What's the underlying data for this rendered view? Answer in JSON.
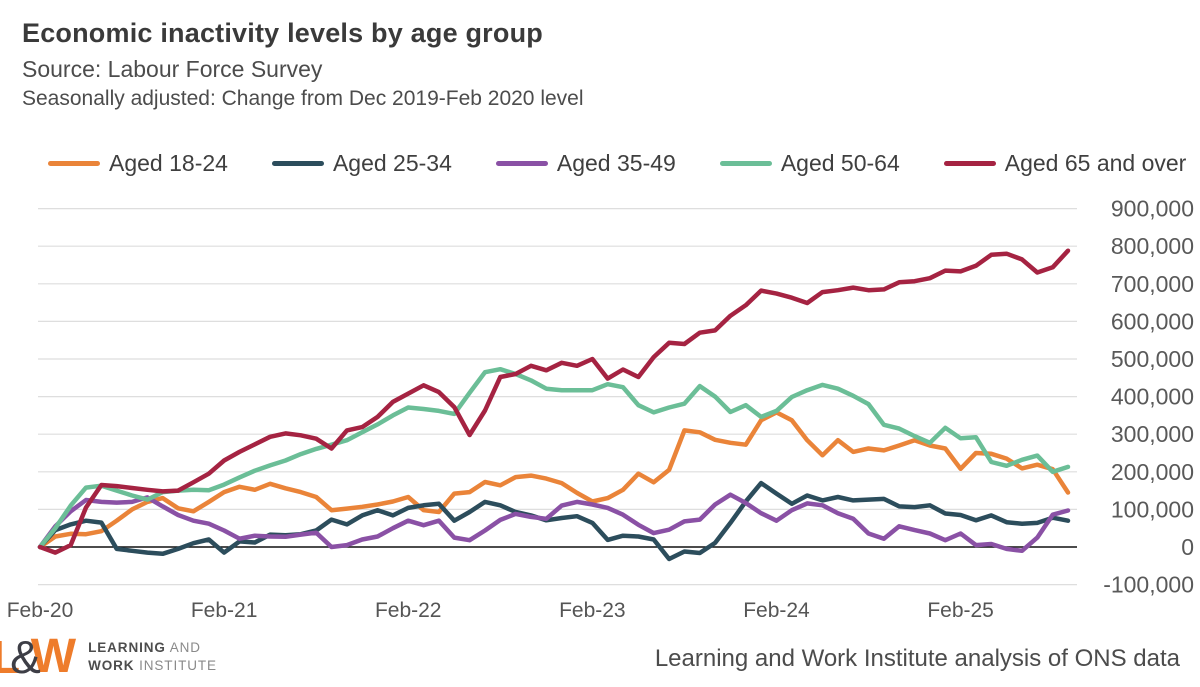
{
  "header": {
    "title": "Economic inactivity levels by age group",
    "source": "Source: Labour Force Survey",
    "subtitle": "Seasonally adjusted: Change from Dec 2019-Feb 2020 level"
  },
  "footer": {
    "logo": {
      "l": "L",
      "amp": "&",
      "w": "W",
      "line1_bold": "LEARNING",
      "line1_rest": " AND",
      "line2_bold": "WORK",
      "line2_rest": " INSTITUTE"
    },
    "attribution": "Learning and Work Institute analysis of ONS data"
  },
  "chart_data": {
    "type": "line",
    "title": "Economic inactivity levels by age group",
    "xlabel": "",
    "ylabel": "",
    "ylim": [
      -100000,
      900000
    ],
    "grid": true,
    "legend_position": "top",
    "colors": {
      "grid": "#dedede",
      "zero_axis": "#111111",
      "axis_text": "#595959"
    },
    "y_ticks": [
      {
        "label": "900,000",
        "value": 900000
      },
      {
        "label": "800,000",
        "value": 800000
      },
      {
        "label": "700,000",
        "value": 700000
      },
      {
        "label": "600,000",
        "value": 600000
      },
      {
        "label": "500,000",
        "value": 500000
      },
      {
        "label": "400,000",
        "value": 400000
      },
      {
        "label": "300,000",
        "value": 300000
      },
      {
        "label": "200,000",
        "value": 200000
      },
      {
        "label": "100,000",
        "value": 100000
      },
      {
        "label": "0",
        "value": 0
      },
      {
        "label": "-100,000",
        "value": -100000
      }
    ],
    "x_ticks": [
      "Feb-20",
      "Feb-21",
      "Feb-22",
      "Feb-23",
      "Feb-24",
      "Feb-25"
    ],
    "months": [
      "Feb-20",
      "Mar-20",
      "Apr-20",
      "May-20",
      "Jun-20",
      "Jul-20",
      "Aug-20",
      "Sep-20",
      "Oct-20",
      "Nov-20",
      "Dec-20",
      "Jan-21",
      "Feb-21",
      "Mar-21",
      "Apr-21",
      "May-21",
      "Jun-21",
      "Jul-21",
      "Aug-21",
      "Sep-21",
      "Oct-21",
      "Nov-21",
      "Dec-21",
      "Jan-22",
      "Feb-22",
      "Mar-22",
      "Apr-22",
      "May-22",
      "Jun-22",
      "Jul-22",
      "Aug-22",
      "Sep-22",
      "Oct-22",
      "Nov-22",
      "Dec-22",
      "Jan-23",
      "Feb-23",
      "Mar-23",
      "Apr-23",
      "May-23",
      "Jun-23",
      "Jul-23",
      "Aug-23",
      "Sep-23",
      "Oct-23",
      "Nov-23",
      "Dec-23",
      "Jan-24",
      "Feb-24",
      "Mar-24",
      "Apr-24",
      "May-24",
      "Jun-24",
      "Jul-24",
      "Aug-24",
      "Sep-24",
      "Oct-24",
      "Nov-24",
      "Dec-24",
      "Jan-25",
      "Feb-25",
      "Mar-25",
      "Apr-25",
      "May-25",
      "Jun-25",
      "Jul-25",
      "Aug-25",
      "Sep-25"
    ],
    "series": [
      {
        "name": "Aged 18-24",
        "color": "#EA8439",
        "values": [
          0,
          28000,
          35000,
          34000,
          42000,
          70000,
          100000,
          120000,
          130000,
          103000,
          95000,
          120000,
          146000,
          160000,
          152000,
          168000,
          156000,
          146000,
          133000,
          98000,
          102000,
          107000,
          113000,
          121000,
          133000,
          98000,
          93000,
          142000,
          146000,
          173000,
          164000,
          186000,
          190000,
          182000,
          170000,
          144000,
          121000,
          130000,
          152000,
          195000,
          172000,
          205000,
          310000,
          305000,
          285000,
          277000,
          272000,
          337000,
          358000,
          337000,
          284000,
          244000,
          284000,
          253000,
          262000,
          257000,
          270000,
          284000,
          270000,
          262000,
          208000,
          250000,
          248000,
          235000,
          209000,
          219000,
          207000,
          145000
        ]
      },
      {
        "name": "Aged 25-34",
        "color": "#2C4D5C",
        "values": [
          0,
          45000,
          60000,
          70000,
          65000,
          -5000,
          -10000,
          -15000,
          -18000,
          -5000,
          10000,
          20000,
          -15000,
          15000,
          12000,
          33000,
          31000,
          34000,
          44000,
          73000,
          60000,
          84000,
          98000,
          84000,
          104000,
          111000,
          115000,
          70000,
          93000,
          120000,
          111000,
          93000,
          84000,
          71000,
          77000,
          82000,
          64000,
          19000,
          30000,
          28000,
          20000,
          -32000,
          -12000,
          -16000,
          11000,
          64000,
          121000,
          170000,
          142000,
          115000,
          137000,
          124000,
          133000,
          124000,
          126000,
          128000,
          108000,
          106000,
          111000,
          89000,
          85000,
          71000,
          84000,
          66000,
          62000,
          64000,
          78000,
          70000
        ]
      },
      {
        "name": "Aged 35-49",
        "color": "#8A51A5",
        "values": [
          0,
          55000,
          95000,
          125000,
          120000,
          118000,
          120000,
          132000,
          108000,
          85000,
          70000,
          62000,
          44000,
          22000,
          30000,
          28000,
          27000,
          33000,
          38000,
          0,
          5000,
          20000,
          28000,
          50000,
          70000,
          58000,
          70000,
          25000,
          18000,
          44000,
          72000,
          88000,
          80000,
          75000,
          110000,
          120000,
          113000,
          104000,
          86000,
          59000,
          37000,
          46000,
          68000,
          73000,
          113000,
          139000,
          117000,
          90000,
          70000,
          98000,
          116000,
          111000,
          90000,
          75000,
          36000,
          22000,
          55000,
          45000,
          36000,
          18000,
          36000,
          5000,
          8000,
          -5000,
          -10000,
          25000,
          86000,
          97000
        ]
      },
      {
        "name": "Aged 50-64",
        "color": "#6BBE97",
        "values": [
          0,
          50000,
          110000,
          158000,
          163000,
          150000,
          137000,
          126000,
          146000,
          150000,
          152000,
          151000,
          166000,
          185000,
          203000,
          217000,
          230000,
          247000,
          261000,
          272000,
          284000,
          305000,
          326000,
          350000,
          371000,
          367000,
          362000,
          354000,
          410000,
          465000,
          473000,
          460000,
          443000,
          421000,
          417000,
          417000,
          417000,
          433000,
          425000,
          377000,
          358000,
          371000,
          381000,
          428000,
          400000,
          359000,
          377000,
          346000,
          362000,
          399000,
          417000,
          431000,
          421000,
          402000,
          380000,
          325000,
          315000,
          295000,
          277000,
          317000,
          289000,
          292000,
          226000,
          216000,
          232000,
          243000,
          200000,
          213000
        ]
      },
      {
        "name": "Aged 65 and over",
        "color": "#A52342",
        "values": [
          0,
          -15000,
          5000,
          105000,
          165000,
          162000,
          157000,
          152000,
          148000,
          150000,
          172000,
          195000,
          230000,
          253000,
          273000,
          293000,
          302000,
          297000,
          288000,
          262000,
          310000,
          319000,
          346000,
          386000,
          408000,
          430000,
          412000,
          372000,
          298000,
          363000,
          452000,
          460000,
          482000,
          470000,
          490000,
          482000,
          500000,
          448000,
          472000,
          452000,
          505000,
          543000,
          540000,
          570000,
          576000,
          615000,
          643000,
          682000,
          674000,
          663000,
          649000,
          678000,
          683000,
          690000,
          683000,
          685000,
          704000,
          707000,
          715000,
          735000,
          733000,
          748000,
          777000,
          780000,
          765000,
          730000,
          744000,
          788000
        ]
      }
    ]
  }
}
